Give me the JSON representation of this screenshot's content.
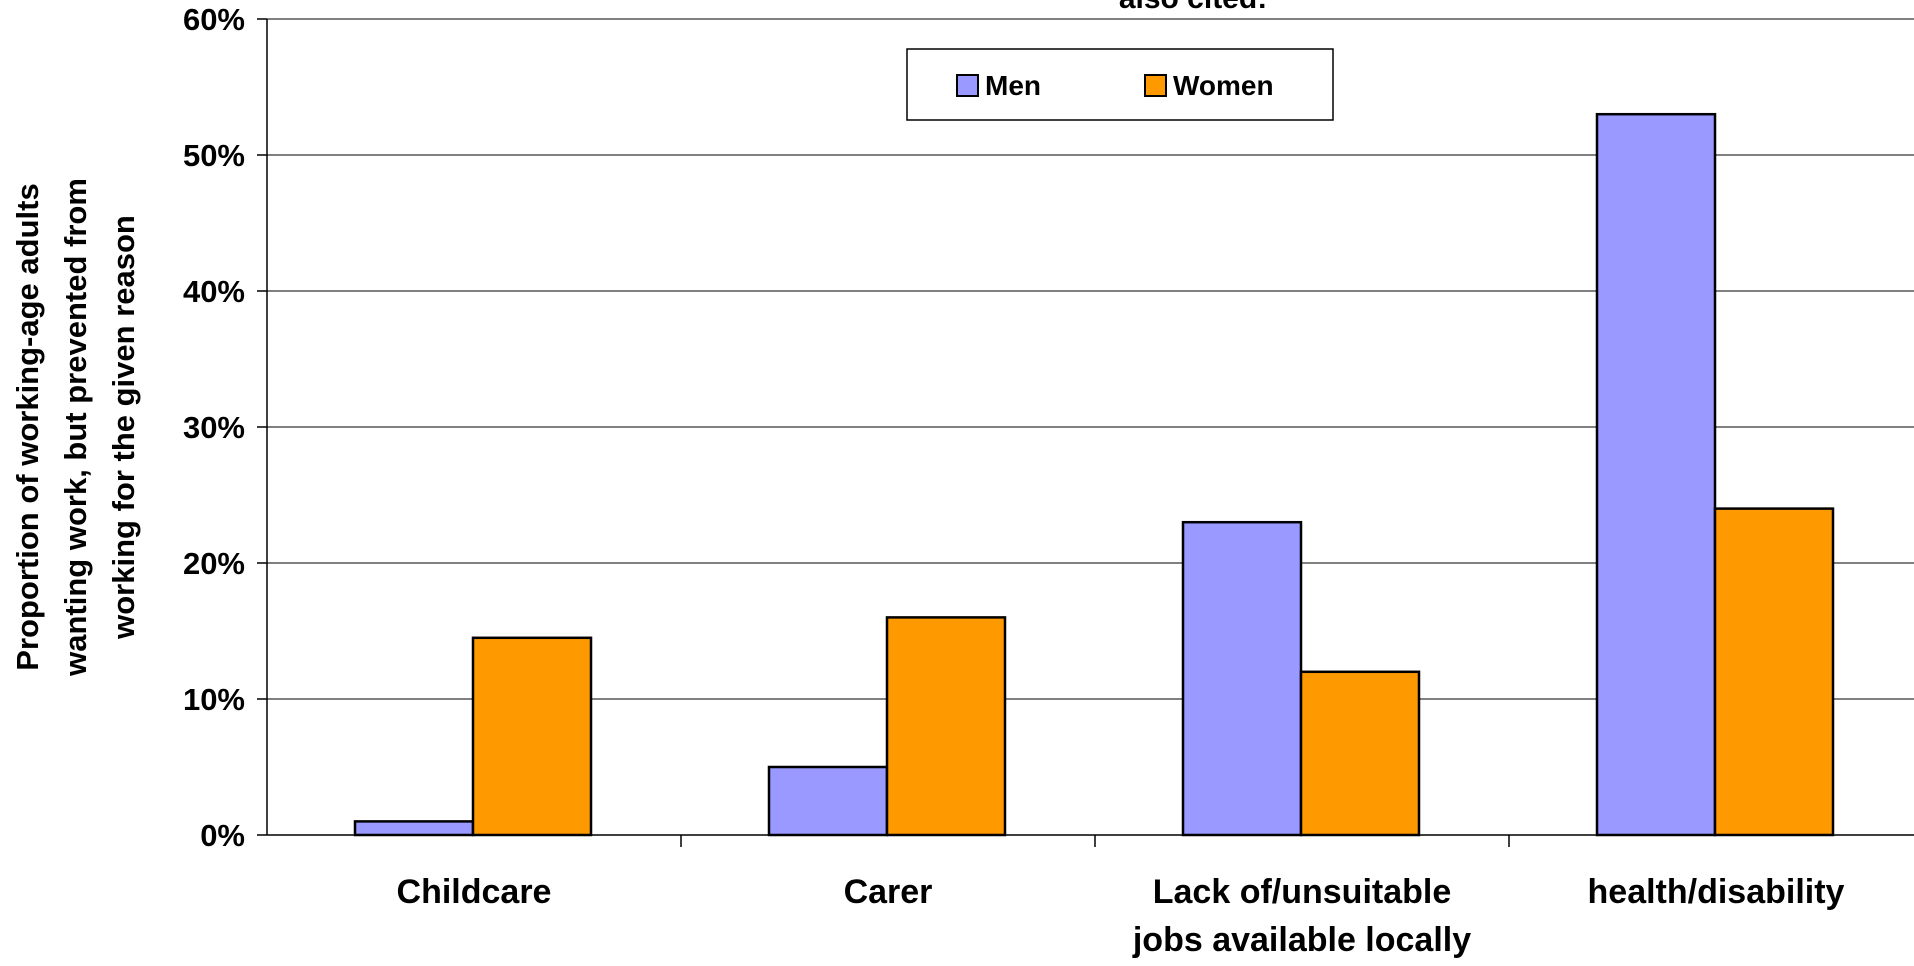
{
  "chart_data": {
    "type": "bar",
    "title": "also cited:",
    "ylabel_lines": [
      "Proportion of working-age adults",
      "wanting work, but prevented from",
      "working for the given reason"
    ],
    "categories": [
      [
        "Childcare"
      ],
      [
        "Carer"
      ],
      [
        "Lack of/unsuitable",
        "jobs available locally"
      ],
      [
        "health/disability"
      ]
    ],
    "series": [
      {
        "name": "Men",
        "color": "#9999ff",
        "values": [
          1,
          5,
          23,
          53
        ]
      },
      {
        "name": "Women",
        "color": "#ff9900",
        "values": [
          14.5,
          16,
          12,
          24
        ]
      }
    ],
    "ylim": [
      0,
      60
    ],
    "yticks": [
      0,
      10,
      20,
      30,
      40,
      50,
      60
    ],
    "ytick_labels": [
      "0%",
      "10%",
      "20%",
      "30%",
      "40%",
      "50%",
      "60%"
    ],
    "grid": true,
    "legend_position": "top-center"
  }
}
